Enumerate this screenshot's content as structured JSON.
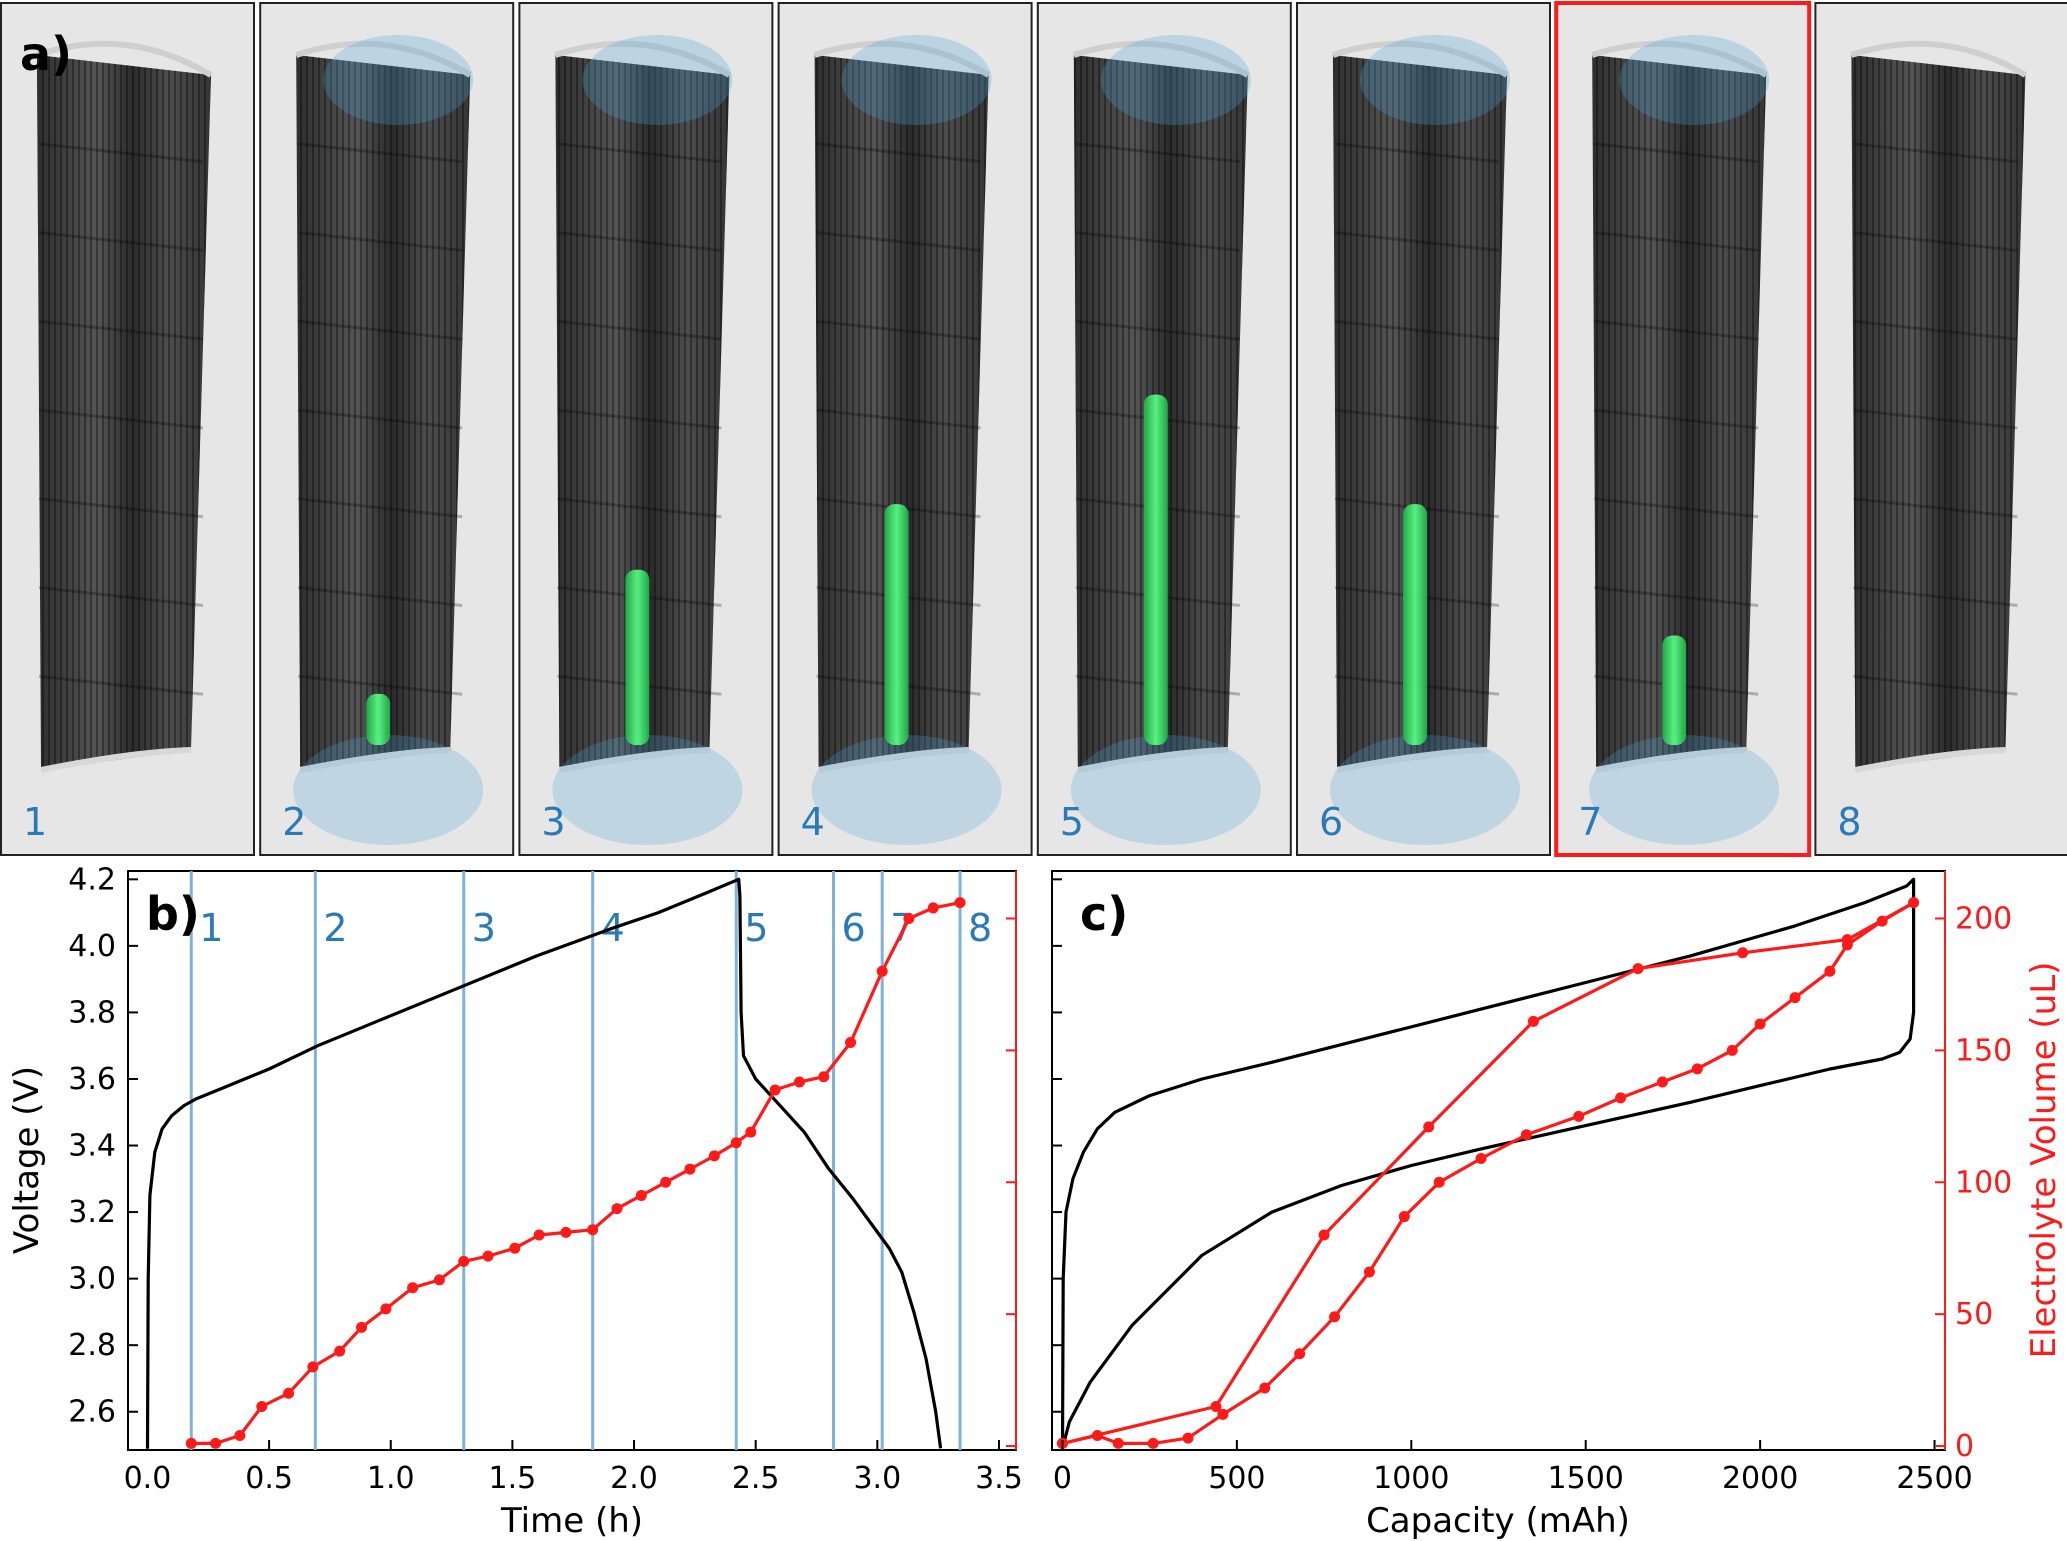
{
  "panel_a": {
    "label": "a)",
    "panels": [
      "1",
      "2",
      "3",
      "4",
      "5",
      "6",
      "7",
      "8"
    ],
    "selected_panel": "7",
    "fill_level": [
      0,
      0.07,
      0.24,
      0.33,
      0.48,
      0.33,
      0.15,
      0
    ],
    "colors": {
      "electrolyte": "#39f06a",
      "gas": "#4fa3d8",
      "frame_selected": "#ff1a1a",
      "cell": "#3a3a3a"
    }
  },
  "chart_data": [
    {
      "id": "b",
      "type": "line",
      "label": "b)",
      "xlabel": "Time (h)",
      "ylabel": "Voltage (V)",
      "xlim": [
        -0.08,
        3.57
      ],
      "ylim": [
        2.485,
        4.225
      ],
      "y2lim": [
        -1.5,
        218
      ],
      "xticks": [
        "0.0",
        "0.5",
        "1.0",
        "1.5",
        "2.0",
        "2.5",
        "3.0",
        "3.5"
      ],
      "xtick_values": [
        0.0,
        0.5,
        1.0,
        1.5,
        2.0,
        2.5,
        3.0,
        3.5
      ],
      "yticks": [
        "2.6",
        "2.8",
        "3.0",
        "3.2",
        "3.4",
        "3.6",
        "3.8",
        "4.0",
        "4.2"
      ],
      "ytick_values": [
        2.6,
        2.8,
        3.0,
        3.2,
        3.4,
        3.6,
        3.8,
        4.0,
        4.2
      ],
      "y2tick_values": [
        0,
        50,
        100,
        150,
        200
      ],
      "markers": {
        "labels": [
          "1",
          "2",
          "3",
          "4",
          "5",
          "6",
          "7",
          "8"
        ],
        "x": [
          0.18,
          0.69,
          1.3,
          1.83,
          2.42,
          2.82,
          3.02,
          3.34
        ]
      },
      "series": [
        {
          "axis": "left",
          "color": "#000000",
          "x": [
            0.0,
            0.003,
            0.01,
            0.03,
            0.06,
            0.1,
            0.15,
            0.2,
            0.3,
            0.5,
            0.7,
            1.0,
            1.3,
            1.6,
            1.9,
            2.1,
            2.3,
            2.43,
            2.435,
            2.44,
            2.45,
            2.5,
            2.6,
            2.7,
            2.8,
            2.9,
            3.0,
            3.05,
            3.1,
            3.15,
            3.2,
            3.24,
            3.26
          ],
          "y": [
            2.49,
            3.0,
            3.25,
            3.38,
            3.45,
            3.49,
            3.52,
            3.54,
            3.57,
            3.63,
            3.7,
            3.79,
            3.88,
            3.97,
            4.05,
            4.1,
            4.16,
            4.2,
            4.15,
            3.8,
            3.67,
            3.6,
            3.52,
            3.44,
            3.33,
            3.24,
            3.14,
            3.09,
            3.02,
            2.9,
            2.76,
            2.6,
            2.49
          ]
        },
        {
          "axis": "right",
          "color": "#ff1a1a",
          "x": [
            0.18,
            0.28,
            0.38,
            0.47,
            0.58,
            0.68,
            0.79,
            0.88,
            0.98,
            1.09,
            1.2,
            1.3,
            1.4,
            1.51,
            1.61,
            1.72,
            1.83,
            1.93,
            2.03,
            2.13,
            2.23,
            2.33,
            2.42,
            2.48,
            2.58,
            2.68,
            2.78,
            2.89,
            3.02,
            3.13,
            3.23,
            3.34
          ],
          "y": [
            1,
            1,
            4,
            15,
            20,
            30,
            36,
            45,
            52,
            60,
            63,
            70,
            72,
            75,
            80,
            81,
            82,
            90,
            95,
            100,
            105,
            110,
            115,
            119,
            135,
            138,
            140,
            153,
            180,
            200,
            204,
            206
          ]
        }
      ]
    },
    {
      "id": "c",
      "type": "line",
      "label": "c)",
      "xlabel": "Capacity (mAh)",
      "ylabel": "Electrolyte Volume (uL)",
      "xlim": [
        -30,
        2530
      ],
      "ylim": [
        2.485,
        4.225
      ],
      "y2lim": [
        -1.5,
        218
      ],
      "xticks": [
        "0",
        "500",
        "1000",
        "1500",
        "2000",
        "2500"
      ],
      "xtick_values": [
        0,
        500,
        1000,
        1500,
        2000,
        2500
      ],
      "y2ticks": [
        "0",
        "50",
        "100",
        "150",
        "200"
      ],
      "y2tick_values": [
        0,
        50,
        100,
        150,
        200
      ],
      "ytick_values": [
        2.6,
        2.8,
        3.0,
        3.2,
        3.4,
        3.6,
        3.8,
        4.0,
        4.2
      ],
      "series": [
        {
          "axis": "left",
          "color": "#000000",
          "x": [
            0,
            2,
            10,
            30,
            60,
            100,
            150,
            250,
            400,
            600,
            900,
            1200,
            1500,
            1800,
            2100,
            2300,
            2420,
            2440,
            2440,
            2430,
            2400,
            2350,
            2200,
            2000,
            1800,
            1500,
            1200,
            1000,
            800,
            600,
            400,
            200,
            80,
            20,
            0
          ],
          "y": [
            2.49,
            3.0,
            3.2,
            3.3,
            3.38,
            3.45,
            3.5,
            3.55,
            3.6,
            3.65,
            3.73,
            3.81,
            3.89,
            3.97,
            4.06,
            4.13,
            4.18,
            4.2,
            3.8,
            3.72,
            3.68,
            3.66,
            3.63,
            3.58,
            3.53,
            3.46,
            3.39,
            3.34,
            3.28,
            3.2,
            3.07,
            2.86,
            2.69,
            2.57,
            2.49
          ]
        },
        {
          "axis": "right",
          "color": "#ff1a1a",
          "x": [
            0,
            440,
            750,
            1050,
            1350,
            1650,
            1950,
            2250,
            2440,
            2350,
            2250,
            2200,
            2100,
            2000,
            1920,
            1820,
            1720,
            1600,
            1480,
            1330,
            1200,
            1080,
            980,
            880,
            780,
            680,
            580,
            460,
            360,
            260,
            160,
            100,
            0
          ],
          "y": [
            1,
            15,
            80,
            121,
            161,
            181,
            187,
            192,
            206,
            199,
            190,
            180,
            170,
            160,
            150,
            143,
            138,
            132,
            125,
            118,
            109,
            100,
            87,
            66,
            49,
            35,
            22,
            12,
            3,
            1,
            1,
            4,
            1
          ]
        }
      ]
    }
  ]
}
